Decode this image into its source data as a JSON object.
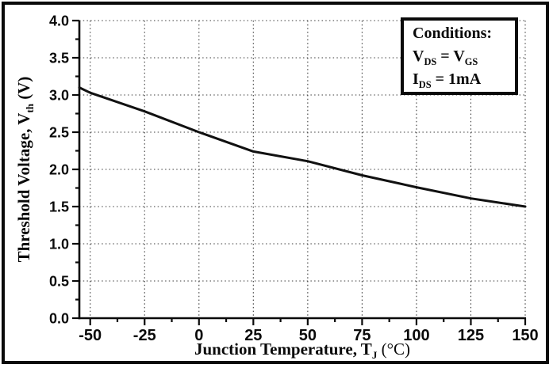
{
  "figure": {
    "background": "#ffffff",
    "border_color": "#0a0a0a"
  },
  "axes": {
    "xlabel_p1": "Junction Temperature, T",
    "xlabel_sub": "J",
    "xlabel_p2": " (°C)",
    "ylabel_p1": "Threshold Voltage, V",
    "ylabel_sub": "th",
    "ylabel_p2": " (V)"
  },
  "conditions_box": {
    "title": "Conditions:",
    "line2_p1": "V",
    "line2_s1": "DS",
    "line2_p2": " = V",
    "line2_s2": "GS",
    "line3_p1": "I",
    "line3_s1": "DS",
    "line3_p2": " = 1mA"
  },
  "chart_data": {
    "type": "line",
    "title": "",
    "xlabel": "Junction Temperature, T_J (°C)",
    "ylabel": "Threshold Voltage, V_th (V)",
    "xlim": [
      -55,
      150
    ],
    "ylim": [
      0,
      4
    ],
    "x_major_ticks": [
      -50,
      -25,
      0,
      25,
      50,
      75,
      100,
      125,
      150
    ],
    "x_tick_labels": [
      "-50",
      "-25",
      "0",
      "25",
      "50",
      "75",
      "100",
      "125",
      "150"
    ],
    "x_minor_ticks": [
      -37.5,
      -12.5,
      12.5,
      37.5,
      62.5,
      87.5,
      112.5,
      137.5
    ],
    "y_major_ticks": [
      0,
      0.5,
      1,
      1.5,
      2,
      2.5,
      3,
      3.5,
      4
    ],
    "y_tick_labels": [
      "0.0",
      "0.5",
      "1.0",
      "1.5",
      "2.0",
      "2.5",
      "3.0",
      "3.5",
      "4.0"
    ],
    "y_minor_ticks": [
      0.25,
      0.75,
      1.25,
      1.75,
      2.25,
      2.75,
      3.25,
      3.75
    ],
    "grid": {
      "on": true,
      "style": "dotted",
      "color": "#3d3d3d"
    },
    "legend": "none",
    "annotations": [
      "Conditions:",
      "V_DS = V_GS",
      "I_DS = 1mA"
    ],
    "series": [
      {
        "name": "threshold-voltage-vs-junction-temperature",
        "color": "#111111",
        "line_width": 3,
        "x": [
          -55,
          -50,
          -25,
          0,
          25,
          50,
          75,
          100,
          125,
          150
        ],
        "y": [
          3.1,
          3.03,
          2.78,
          2.5,
          2.24,
          2.11,
          1.92,
          1.76,
          1.61,
          1.5
        ]
      }
    ]
  }
}
